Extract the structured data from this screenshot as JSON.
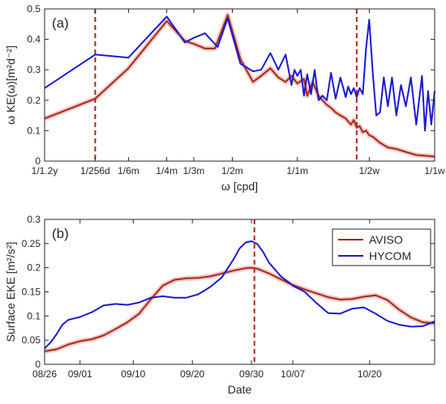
{
  "colors": {
    "aviso": "#A52A14",
    "hycom": "#1A1AD4",
    "vline": "#A52A14",
    "axis": "#262626",
    "halo": "#F4C6C6"
  },
  "chart_data": [
    {
      "type": "line",
      "panel_label": "(a)",
      "xlabel": "ω [cpd]",
      "ylabel": "ω KE(ω)[m²d⁻²]",
      "x_scale": "log",
      "xlim": [
        0.00228,
        1.0
      ],
      "ylim": [
        0,
        0.5
      ],
      "x_ticks": [
        {
          "value": 0.00228,
          "label": "1/1.2y"
        },
        {
          "value": 0.0039,
          "label": "1/256d"
        },
        {
          "value": 0.00555,
          "label": "1/6m"
        },
        {
          "value": 0.00833,
          "label": "1/4m"
        },
        {
          "value": 0.0111,
          "label": "1/3m"
        },
        {
          "value": 0.0167,
          "label": "1/2m"
        },
        {
          "value": 0.0333,
          "label": "1/1m"
        },
        {
          "value": 0.0714,
          "label": "1/2w"
        },
        {
          "value": 0.1429,
          "label": "1/1w"
        }
      ],
      "y_ticks": [
        0,
        0.1,
        0.2,
        0.3,
        0.4,
        0.5
      ],
      "vlines": [
        0.0039,
        0.0625
      ],
      "series": [
        {
          "name": "AVISO",
          "points": [
            [
              0.00228,
              0.14
            ],
            [
              0.0039,
              0.205
            ],
            [
              0.00555,
              0.305
            ],
            [
              0.00833,
              0.46
            ],
            [
              0.0101,
              0.395
            ],
            [
              0.0111,
              0.385
            ],
            [
              0.0125,
              0.37
            ],
            [
              0.0139,
              0.37
            ],
            [
              0.0159,
              0.48
            ],
            [
              0.0182,
              0.335
            ],
            [
              0.0208,
              0.26
            ],
            [
              0.0227,
              0.28
            ],
            [
              0.025,
              0.305
            ],
            [
              0.0272,
              0.275
            ],
            [
              0.0294,
              0.26
            ],
            [
              0.0313,
              0.28
            ],
            [
              0.0333,
              0.255
            ],
            [
              0.0357,
              0.27
            ],
            [
              0.037,
              0.215
            ],
            [
              0.0392,
              0.26
            ],
            [
              0.0417,
              0.215
            ],
            [
              0.0435,
              0.2
            ],
            [
              0.0455,
              0.185
            ],
            [
              0.0476,
              0.175
            ],
            [
              0.05,
              0.16
            ],
            [
              0.0526,
              0.15
            ],
            [
              0.0556,
              0.14
            ],
            [
              0.0588,
              0.12
            ],
            [
              0.0606,
              0.135
            ],
            [
              0.0625,
              0.11
            ],
            [
              0.0645,
              0.115
            ],
            [
              0.0667,
              0.095
            ],
            [
              0.069,
              0.1
            ],
            [
              0.0714,
              0.085
            ],
            [
              0.0741,
              0.08
            ],
            [
              0.08,
              0.06
            ],
            [
              0.087,
              0.045
            ],
            [
              0.0952,
              0.04
            ],
            [
              0.1053,
              0.03
            ],
            [
              0.1176,
              0.02
            ],
            [
              0.1333,
              0.017
            ],
            [
              0.1429,
              0.015
            ]
          ]
        },
        {
          "name": "HYCOM",
          "points": [
            [
              0.00228,
              0.24
            ],
            [
              0.0039,
              0.35
            ],
            [
              0.00555,
              0.34
            ],
            [
              0.00833,
              0.475
            ],
            [
              0.0101,
              0.39
            ],
            [
              0.0111,
              0.405
            ],
            [
              0.0125,
              0.42
            ],
            [
              0.0143,
              0.375
            ],
            [
              0.0159,
              0.47
            ],
            [
              0.0182,
              0.32
            ],
            [
              0.0208,
              0.295
            ],
            [
              0.0227,
              0.3
            ],
            [
              0.025,
              0.355
            ],
            [
              0.0272,
              0.3
            ],
            [
              0.0294,
              0.35
            ],
            [
              0.0313,
              0.25
            ],
            [
              0.0323,
              0.3
            ],
            [
              0.0333,
              0.28
            ],
            [
              0.0345,
              0.3
            ],
            [
              0.0357,
              0.215
            ],
            [
              0.037,
              0.285
            ],
            [
              0.0385,
              0.22
            ],
            [
              0.04,
              0.3
            ],
            [
              0.0417,
              0.2
            ],
            [
              0.0435,
              0.215
            ],
            [
              0.0455,
              0.2
            ],
            [
              0.0476,
              0.29
            ],
            [
              0.05,
              0.205
            ],
            [
              0.0526,
              0.275
            ],
            [
              0.0556,
              0.21
            ],
            [
              0.0571,
              0.245
            ],
            [
              0.0588,
              0.22
            ],
            [
              0.0606,
              0.24
            ],
            [
              0.0625,
              0.21
            ],
            [
              0.0645,
              0.24
            ],
            [
              0.0667,
              0.22
            ],
            [
              0.069,
              0.37
            ],
            [
              0.0714,
              0.465
            ],
            [
              0.0741,
              0.29
            ],
            [
              0.0769,
              0.15
            ],
            [
              0.08,
              0.16
            ],
            [
              0.0833,
              0.275
            ],
            [
              0.087,
              0.18
            ],
            [
              0.0909,
              0.275
            ],
            [
              0.0952,
              0.15
            ],
            [
              0.1,
              0.25
            ],
            [
              0.1053,
              0.18
            ],
            [
              0.1111,
              0.275
            ],
            [
              0.1176,
              0.12
            ],
            [
              0.125,
              0.28
            ],
            [
              0.129,
              0.1
            ],
            [
              0.1333,
              0.23
            ],
            [
              0.1379,
              0.12
            ],
            [
              0.1429,
              0.23
            ]
          ]
        }
      ]
    },
    {
      "type": "line",
      "panel_label": "(b)",
      "xlabel": "Date",
      "ylabel": "Surface EKE [m²/s²]",
      "xlim": [
        0,
        66
      ],
      "ylim": [
        0,
        0.3
      ],
      "x_ticks": [
        {
          "value": 0,
          "label": "08/26"
        },
        {
          "value": 6,
          "label": "09/01"
        },
        {
          "value": 15,
          "label": "09/10"
        },
        {
          "value": 25,
          "label": "09/20"
        },
        {
          "value": 35,
          "label": "09/30"
        },
        {
          "value": 42,
          "label": "10/07"
        },
        {
          "value": 55,
          "label": "10/20"
        }
      ],
      "y_ticks": [
        0,
        0.05,
        0.1,
        0.15,
        0.2,
        0.25,
        0.3
      ],
      "vlines": [
        35.5
      ],
      "legend_position": "top-right",
      "series": [
        {
          "name": "AVISO",
          "x": [
            0,
            2,
            4,
            6,
            8,
            10,
            12,
            14,
            16,
            18,
            20,
            22,
            24,
            26,
            28,
            30,
            32,
            34,
            35,
            36,
            38,
            40,
            42,
            44,
            46,
            48,
            50,
            52,
            54,
            56,
            58,
            60,
            62,
            64,
            66
          ],
          "values": [
            0.027,
            0.031,
            0.041,
            0.048,
            0.052,
            0.06,
            0.073,
            0.087,
            0.105,
            0.135,
            0.163,
            0.175,
            0.178,
            0.179,
            0.182,
            0.188,
            0.194,
            0.199,
            0.2,
            0.198,
            0.188,
            0.176,
            0.164,
            0.155,
            0.147,
            0.139,
            0.134,
            0.135,
            0.14,
            0.143,
            0.133,
            0.113,
            0.097,
            0.087,
            0.085
          ]
        },
        {
          "name": "HYCOM",
          "x": [
            0,
            1,
            2,
            3,
            4,
            5,
            6,
            8,
            10,
            12,
            14,
            16,
            18,
            20,
            22,
            24,
            26,
            28,
            30,
            32,
            33,
            34,
            35,
            36,
            37,
            38,
            40,
            42,
            44,
            46,
            48,
            50,
            52,
            54,
            56,
            58,
            60,
            62,
            64,
            66
          ],
          "values": [
            0.033,
            0.045,
            0.062,
            0.082,
            0.092,
            0.095,
            0.098,
            0.108,
            0.122,
            0.125,
            0.123,
            0.128,
            0.138,
            0.141,
            0.138,
            0.138,
            0.145,
            0.16,
            0.18,
            0.218,
            0.24,
            0.252,
            0.255,
            0.249,
            0.232,
            0.21,
            0.182,
            0.163,
            0.15,
            0.127,
            0.106,
            0.105,
            0.115,
            0.118,
            0.105,
            0.09,
            0.082,
            0.078,
            0.079,
            0.089
          ]
        }
      ]
    }
  ]
}
